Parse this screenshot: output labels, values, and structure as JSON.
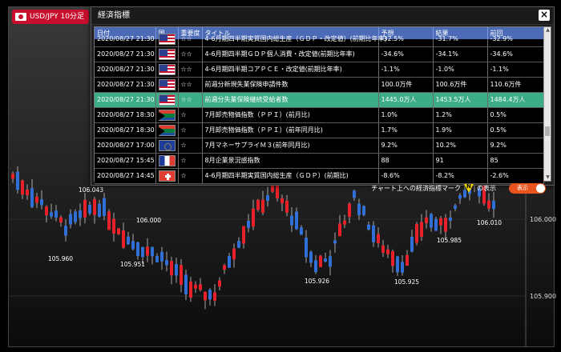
{
  "symbol": {
    "label": "USD/JPY 10分足"
  },
  "dialog": {
    "title": "経済指標",
    "close_icon": "×",
    "columns": [
      "日付",
      "国",
      "重要度",
      "タイトル",
      "予想",
      "結果",
      "前回"
    ],
    "rows": [
      {
        "date": "2020/08/27 21:30",
        "flag": "us",
        "importance": "☆☆",
        "title": "4-6月期四半期実質国内総生産（ＧＤＰ・改定値）(前期比年率)",
        "forecast": "-32.5%",
        "result": "-31.7%",
        "previous": "-32.9%"
      },
      {
        "date": "2020/08/27 21:30",
        "flag": "us",
        "importance": "☆☆",
        "title": "4-6月期四半期ＧＤＰ個人消費・改定値(前期比年率)",
        "forecast": "-34.6%",
        "result": "-34.1%",
        "previous": "-34.6%"
      },
      {
        "date": "2020/08/27 21:30",
        "flag": "us",
        "importance": "☆☆",
        "title": "4-6月期四半期コアＰＣＥ・改定値(前期比年率)",
        "forecast": "-1.1%",
        "result": "-1.0%",
        "previous": "-1.1%"
      },
      {
        "date": "2020/08/27 21:30",
        "flag": "us",
        "importance": "☆☆",
        "title": "前週分新規失業保険申請件数",
        "forecast": "100.0万件",
        "result": "100.6万件",
        "previous": "110.6万件"
      },
      {
        "date": "2020/08/27 21:30",
        "flag": "us",
        "importance": "☆☆",
        "title": "前週分失業保険継続受給者数",
        "forecast": "1445.0万人",
        "result": "1453.5万人",
        "previous": "1484.4万人",
        "highlight": true
      },
      {
        "date": "2020/08/27 18:30",
        "flag": "za",
        "importance": "☆",
        "title": "7月卸売物価指数（ＰＰＩ）(前月比)",
        "forecast": "1.0%",
        "result": "1.2%",
        "previous": "0.5%"
      },
      {
        "date": "2020/08/27 18:30",
        "flag": "za",
        "importance": "☆",
        "title": "7月卸売物価指数（ＰＰＩ）(前年同月比)",
        "forecast": "1.7%",
        "result": "1.9%",
        "previous": "0.5%"
      },
      {
        "date": "2020/08/27 17:00",
        "flag": "eu",
        "importance": "☆",
        "title": "7月マネーサプライＭ３(前年同月比)",
        "forecast": "9.2%",
        "result": "10.2%",
        "previous": "9.2%"
      },
      {
        "date": "2020/08/27 15:45",
        "flag": "fr",
        "importance": "☆",
        "title": "8月企業景況感指数",
        "forecast": "88",
        "result": "91",
        "previous": "85"
      },
      {
        "date": "2020/08/27 14:45",
        "flag": "ch",
        "importance": "☆",
        "title": "4-6月期四半期実質国内総生産（ＧＤＰ）(前期比)",
        "forecast": "-8.6%",
        "result": "-8.2%",
        "previous": "-2.6%"
      }
    ],
    "footer": {
      "label": "チャート上への経済指標マーク",
      "mark_letter": "N",
      "suffix": "の表示",
      "toggle_label": "表示"
    }
  },
  "chart": {
    "price_labels": [
      "106.043",
      "106.000",
      "105.960",
      "105.951",
      "105.926",
      "105.925",
      "105.985",
      "106.010"
    ],
    "axis_labels": [
      "106.000",
      "105.900"
    ],
    "colors": {
      "up": "#e8202a",
      "down": "#2f6fd6",
      "wick": "#cccccc"
    }
  }
}
